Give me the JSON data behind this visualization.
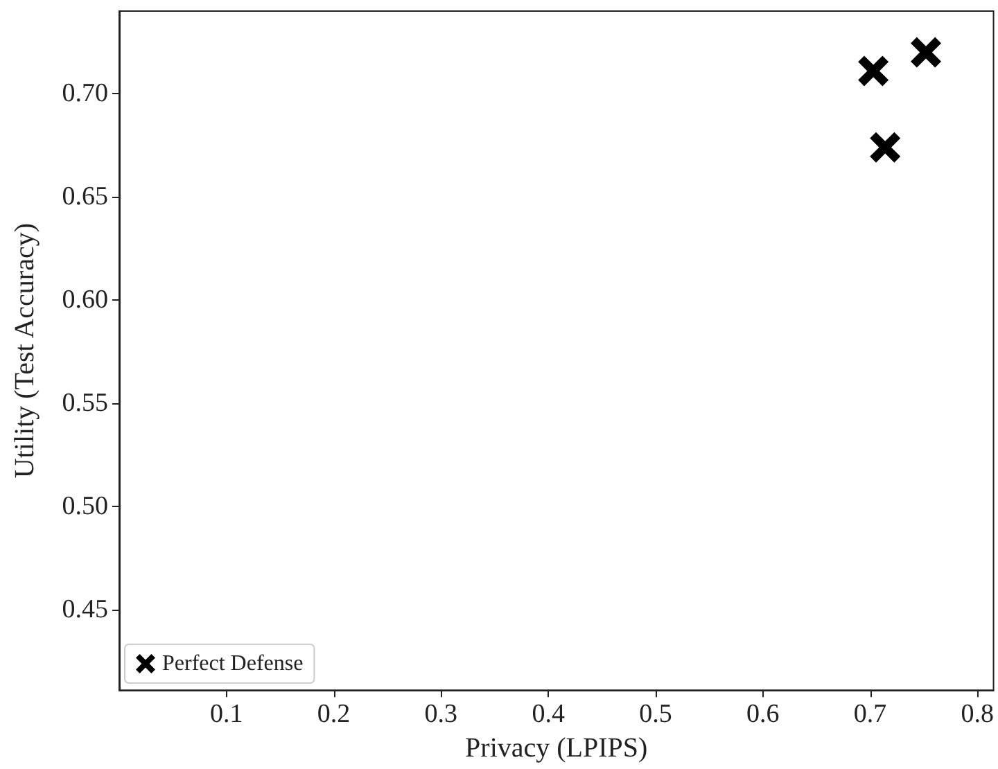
{
  "chart_data": {
    "type": "scatter",
    "xlabel": "Privacy (LPIPS)",
    "ylabel": "Utility (Test Accuracy)",
    "series": [
      {
        "name": "Perfect Defense",
        "color": "#000000",
        "x": [
          0.703,
          0.752,
          0.714
        ],
        "values": [
          0.711,
          0.72,
          0.674
        ]
      }
    ],
    "xlim": [
      0.0,
      0.815
    ],
    "xticks": [
      0.1,
      0.2,
      0.3,
      0.4,
      0.5,
      0.6,
      0.7,
      0.8
    ],
    "ylim": [
      0.411,
      0.74
    ],
    "yticks": [
      0.45,
      {
        "value": 0.5,
        "label": "0.50"
      },
      0.55,
      {
        "value": 0.6,
        "label": "0.60"
      },
      0.65,
      {
        "value": 0.7,
        "label": "0.70"
      }
    ],
    "marker": "cross",
    "grid": false,
    "legend": "bottom left"
  }
}
